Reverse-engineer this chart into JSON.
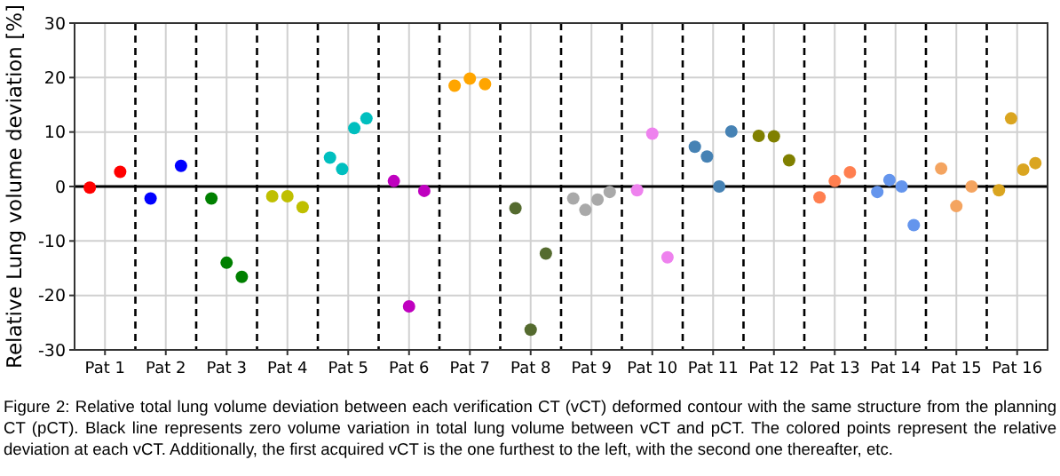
{
  "chart_data": {
    "type": "scatter",
    "ylabel": "Relative Lung volume deviation [%]",
    "categories": [
      "Pat 1",
      "Pat 2",
      "Pat 3",
      "Pat 4",
      "Pat 5",
      "Pat 6",
      "Pat 7",
      "Pat 8",
      "Pat 9",
      "Pat 10",
      "Pat 11",
      "Pat 12",
      "Pat 13",
      "Pat 14",
      "Pat 15",
      "Pat 16"
    ],
    "ylim": [
      -30,
      30
    ],
    "yticks": [
      -30,
      -20,
      -10,
      0,
      10,
      20,
      30
    ],
    "grid": true,
    "marker": "circle",
    "series": [
      {
        "color": "#ff0000",
        "x": [
          "Pat 1",
          "Pat 1"
        ],
        "values": [
          -0.2,
          2.7
        ]
      },
      {
        "color": "#0000ff",
        "x": [
          "Pat 2",
          "Pat 2"
        ],
        "values": [
          -2.2,
          3.8
        ]
      },
      {
        "color": "#008000",
        "x": [
          "Pat 3",
          "Pat 3",
          "Pat 3"
        ],
        "values": [
          -2.2,
          -14,
          -16.6
        ]
      },
      {
        "color": "#bfbf00",
        "x": [
          "Pat 4",
          "Pat 4",
          "Pat 4"
        ],
        "values": [
          -1.8,
          -1.8,
          -3.8
        ]
      },
      {
        "color": "#00bfbf",
        "x": [
          "Pat 5",
          "Pat 5",
          "Pat 5",
          "Pat 5"
        ],
        "values": [
          5.3,
          3.2,
          10.7,
          12.5
        ]
      },
      {
        "color": "#bf00bf",
        "x": [
          "Pat 6",
          "Pat 6",
          "Pat 6"
        ],
        "values": [
          1.0,
          -22,
          -0.8
        ]
      },
      {
        "color": "#ffa500",
        "x": [
          "Pat 7",
          "Pat 7",
          "Pat 7"
        ],
        "values": [
          18.5,
          19.8,
          18.8
        ]
      },
      {
        "color": "#556b2f",
        "x": [
          "Pat 8",
          "Pat 8",
          "Pat 8"
        ],
        "values": [
          -4,
          -26.3,
          -12.3
        ]
      },
      {
        "color": "#a9a9a9",
        "x": [
          "Pat 9",
          "Pat 9",
          "Pat 9",
          "Pat 9"
        ],
        "values": [
          -2.2,
          -4.3,
          -2.4,
          -1.0
        ]
      },
      {
        "color": "#ee82ee",
        "x": [
          "Pat 10",
          "Pat 10",
          "Pat 10"
        ],
        "values": [
          -0.7,
          9.7,
          -13
        ]
      },
      {
        "color": "#4682b4",
        "x": [
          "Pat 11",
          "Pat 11",
          "Pat 11",
          "Pat 11"
        ],
        "values": [
          7.3,
          5.5,
          0,
          10.1
        ]
      },
      {
        "color": "#808000",
        "x": [
          "Pat 12",
          "Pat 12",
          "Pat 12"
        ],
        "values": [
          9.3,
          9.2,
          4.8
        ]
      },
      {
        "color": "#ff7f50",
        "x": [
          "Pat 13",
          "Pat 13",
          "Pat 13"
        ],
        "values": [
          -2.0,
          1.0,
          2.6
        ]
      },
      {
        "color": "#6495ed",
        "x": [
          "Pat 14",
          "Pat 14",
          "Pat 14",
          "Pat 14"
        ],
        "values": [
          -1.0,
          1.2,
          0,
          -7.1
        ]
      },
      {
        "color": "#f4a460",
        "x": [
          "Pat 15",
          "Pat 15",
          "Pat 15"
        ],
        "values": [
          3.3,
          -3.6,
          0
        ]
      },
      {
        "color": "#daa520",
        "x": [
          "Pat 16",
          "Pat 16",
          "Pat 16",
          "Pat 16"
        ],
        "values": [
          -0.7,
          12.5,
          3.1,
          4.3
        ]
      }
    ],
    "ref_lines": [
      {
        "axis": "y",
        "value": 0,
        "color": "#000000",
        "line_style": "solid"
      }
    ],
    "annotations": [
      "Figure 2: Relative total lung volume deviation between each verification CT (vCT) deformed contour with the same structure from the planning CT (pCT). Black line represents zero volume variation in total lung volume between vCT and pCT. The colored points represent the relative deviation at each vCT. Additionally, the first acquired vCT is the one furthest to the left, with the second one thereafter, etc."
    ]
  }
}
